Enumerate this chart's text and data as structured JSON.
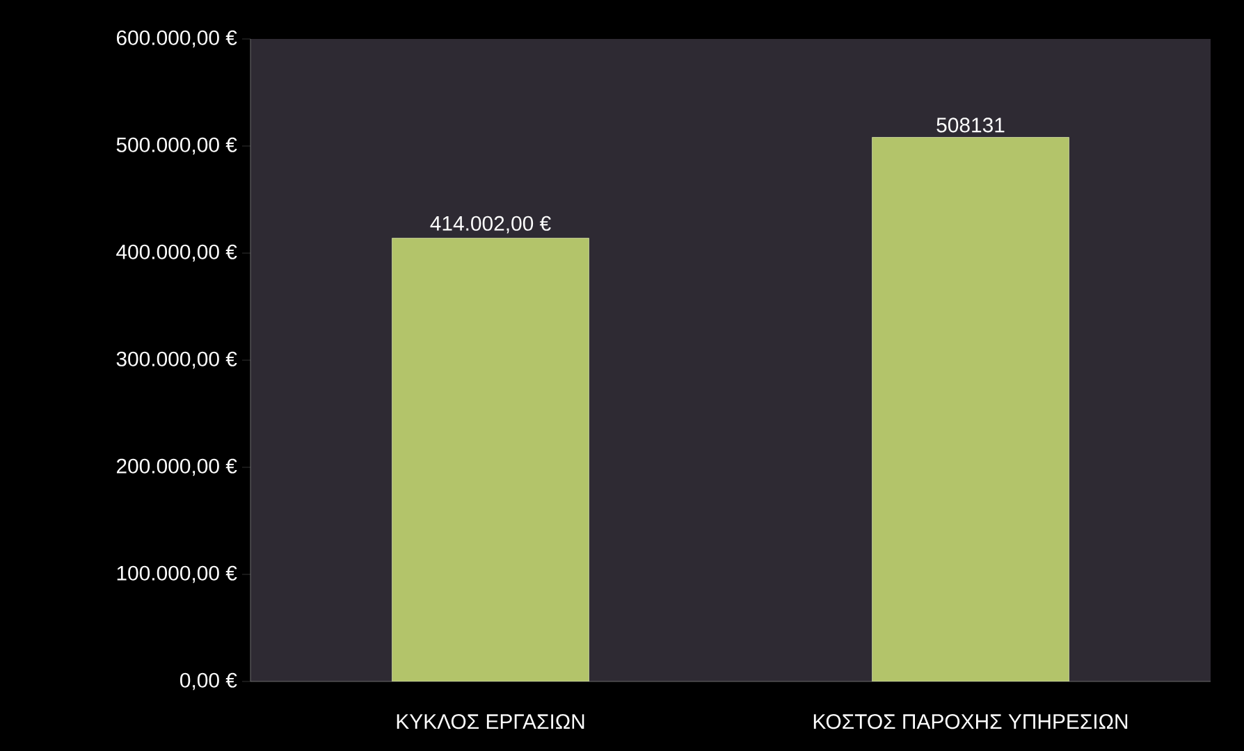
{
  "chart_data": {
    "type": "bar",
    "categories": [
      "ΚΥΚΛΟΣ ΕΡΓΑΣΙΩΝ",
      "ΚΟΣΤΟΣ ΠΑΡΟΧΗΣ ΥΠΗΡΕΣΙΩΝ"
    ],
    "values": [
      414002,
      508131
    ],
    "value_labels": [
      "414.002,00 €",
      "508131"
    ],
    "color": "#b3c46a",
    "ylim": [
      0,
      600000
    ],
    "yticks": [
      {
        "value": 0,
        "label": "0,00 €"
      },
      {
        "value": 100000,
        "label": "100.000,00 €"
      },
      {
        "value": 200000,
        "label": "200.000,00 €"
      },
      {
        "value": 300000,
        "label": "300.000,00 €"
      },
      {
        "value": 400000,
        "label": "400.000,00 €"
      },
      {
        "value": 500000,
        "label": "500.000,00 €"
      },
      {
        "value": 600000,
        "label": "600.000,00 €"
      }
    ]
  }
}
